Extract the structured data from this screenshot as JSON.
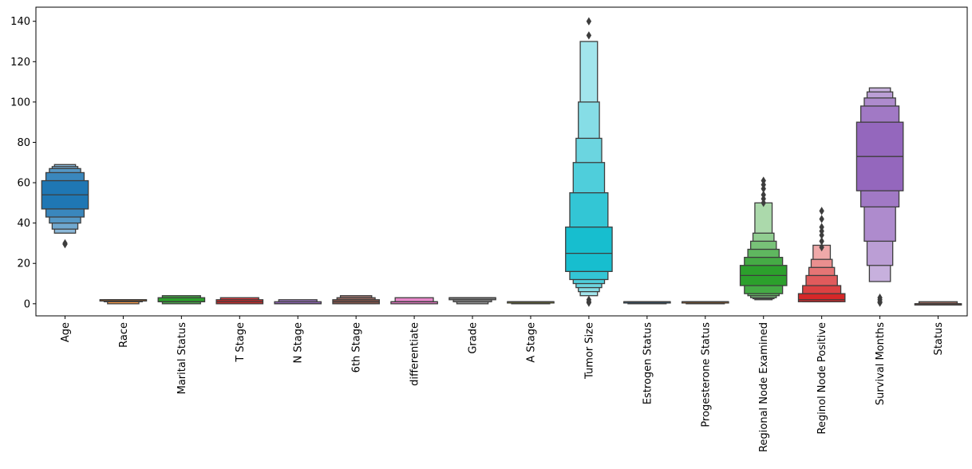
{
  "chart_data": {
    "type": "boxen",
    "title": "",
    "xlabel": "",
    "ylabel": "",
    "ylim": [
      -6,
      147
    ],
    "yticks": [
      0,
      20,
      40,
      60,
      80,
      100,
      120,
      140
    ],
    "ytick_labels": [
      "0",
      "20",
      "40",
      "60",
      "80",
      "100",
      "120",
      "140"
    ],
    "categories": [
      "Age",
      "Race",
      "Marital Status",
      "T Stage",
      "N Stage",
      "6th Stage",
      "differentiate",
      "Grade",
      "A Stage",
      "Tumor Size",
      "Estrogen Status",
      "Progesterone Status",
      "Regional Node Examined",
      "Reginol Node Positive",
      "Survival Months",
      "Status"
    ],
    "colors": [
      "#1f77b4",
      "#ff7f0e",
      "#2ca02c",
      "#d62728",
      "#9467bd",
      "#8c564b",
      "#e377c2",
      "#7f7f7f",
      "#bcbd22",
      "#17becf",
      "#1f77b4",
      "#ff7f0e",
      "#2ca02c",
      "#d62728",
      "#9467bd",
      "#8c564b"
    ],
    "series": [
      {
        "category": "Age",
        "median": 54,
        "boxes": [
          [
            47,
            61
          ],
          [
            43,
            65
          ],
          [
            40,
            67
          ],
          [
            37,
            68
          ],
          [
            35,
            69
          ]
        ],
        "outliers": [
          30,
          29.5
        ]
      },
      {
        "category": "Race",
        "median": 2,
        "boxes": [
          [
            2,
            2
          ],
          [
            1,
            2
          ],
          [
            0,
            2
          ]
        ],
        "outliers": []
      },
      {
        "category": "Marital Status",
        "median": 1,
        "boxes": [
          [
            1,
            3
          ],
          [
            0,
            4
          ]
        ],
        "outliers": []
      },
      {
        "category": "T Stage",
        "median": 1,
        "boxes": [
          [
            0,
            2
          ],
          [
            0,
            3
          ]
        ],
        "outliers": []
      },
      {
        "category": "N Stage",
        "median": 0,
        "boxes": [
          [
            0,
            1
          ],
          [
            0,
            2
          ]
        ],
        "outliers": []
      },
      {
        "category": "6th Stage",
        "median": 1,
        "boxes": [
          [
            0,
            2
          ],
          [
            0,
            3
          ],
          [
            0,
            4
          ]
        ],
        "outliers": []
      },
      {
        "category": "differentiate",
        "median": 1,
        "boxes": [
          [
            0,
            1
          ],
          [
            0,
            3
          ]
        ],
        "outliers": []
      },
      {
        "category": "Grade",
        "median": 3,
        "boxes": [
          [
            2,
            3
          ],
          [
            1,
            3
          ],
          [
            0,
            3
          ]
        ],
        "outliers": []
      },
      {
        "category": "A Stage",
        "median": 1,
        "boxes": [
          [
            1,
            1
          ],
          [
            0,
            1
          ]
        ],
        "outliers": []
      },
      {
        "category": "Tumor Size",
        "median": 25,
        "boxes": [
          [
            16,
            38
          ],
          [
            12,
            55
          ],
          [
            10,
            70
          ],
          [
            8,
            82
          ],
          [
            6,
            100
          ],
          [
            4,
            130
          ]
        ],
        "outliers": [
          140,
          133,
          2,
          1,
          0.5
        ]
      },
      {
        "category": "Estrogen Status",
        "median": 1,
        "boxes": [
          [
            1,
            1
          ],
          [
            0,
            1
          ]
        ],
        "outliers": []
      },
      {
        "category": "Progesterone Status",
        "median": 1,
        "boxes": [
          [
            1,
            1
          ],
          [
            0,
            1
          ]
        ],
        "outliers": []
      },
      {
        "category": "Regional Node Examined",
        "median": 14,
        "boxes": [
          [
            9,
            19
          ],
          [
            5,
            23
          ],
          [
            4,
            27
          ],
          [
            3,
            31
          ],
          [
            2.5,
            35
          ],
          [
            2,
            50
          ]
        ],
        "outliers": [
          61,
          59,
          57,
          54,
          52,
          50
        ]
      },
      {
        "category": "Reginol Node Positive",
        "median": 2,
        "boxes": [
          [
            1,
            5
          ],
          [
            1,
            9
          ],
          [
            1,
            14
          ],
          [
            1,
            18
          ],
          [
            1,
            22
          ],
          [
            1,
            29
          ]
        ],
        "outliers": [
          46,
          42,
          38,
          36,
          34,
          31,
          28
        ]
      },
      {
        "category": "Survival Months",
        "median": 73,
        "boxes": [
          [
            56,
            90
          ],
          [
            48,
            98
          ],
          [
            31,
            102
          ],
          [
            19,
            105
          ],
          [
            11,
            107
          ]
        ],
        "outliers": [
          3,
          2,
          1,
          0.5
        ]
      },
      {
        "category": "Status",
        "median": 0,
        "boxes": [
          [
            0,
            0
          ],
          [
            0,
            1
          ]
        ],
        "outliers": []
      }
    ]
  }
}
